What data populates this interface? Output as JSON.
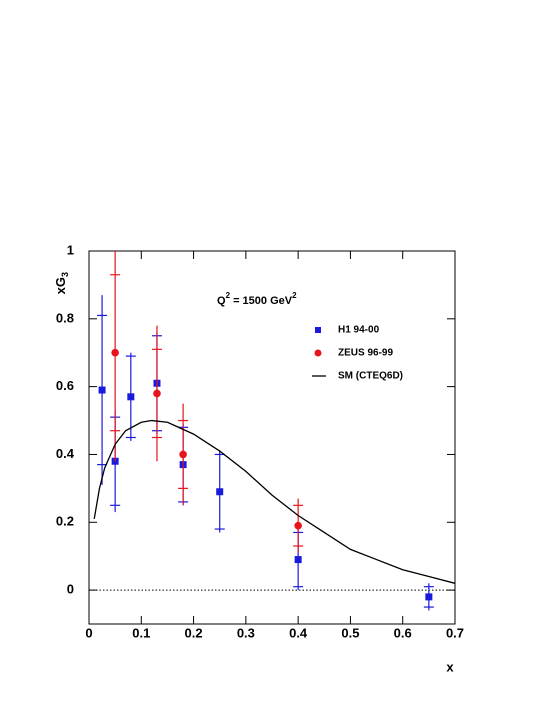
{
  "chart_data": {
    "type": "scatter",
    "xlabel": "x",
    "ylabel": [
      "xG",
      "3"
    ],
    "annotation": [
      "Q",
      "2",
      " = 1500 GeV",
      "2"
    ],
    "xlim": [
      0,
      0.7
    ],
    "ylim": [
      -0.1,
      1
    ],
    "xticks": [
      0,
      0.1,
      0.2,
      0.3,
      0.4,
      0.5,
      0.6,
      0.7
    ],
    "yticks": [
      0,
      0.2,
      0.4,
      0.6,
      0.8,
      1
    ],
    "hline": 0,
    "legend": "upper right",
    "series": [
      {
        "name": "H1 94-00",
        "color": "#1a1adf",
        "marker": "square",
        "x": [
          0.025,
          0.05,
          0.08,
          0.13,
          0.18,
          0.25,
          0.4,
          0.65
        ],
        "values": [
          0.59,
          0.38,
          0.57,
          0.61,
          0.37,
          0.29,
          0.09,
          -0.02
        ],
        "stat_errors": [
          0.22,
          0.13,
          0.12,
          0.14,
          0.11,
          0.11,
          0.08,
          0.03
        ],
        "total_errors": [
          0.28,
          0.15,
          0.13,
          0.15,
          0.12,
          0.12,
          0.09,
          0.04
        ]
      },
      {
        "name": "ZEUS 96-99",
        "color": "#e8141c",
        "marker": "circle",
        "x": [
          0.05,
          0.13,
          0.18,
          0.4
        ],
        "values": [
          0.7,
          0.58,
          0.4,
          0.19
        ],
        "stat_errors": [
          0.23,
          0.13,
          0.1,
          0.06
        ],
        "total_errors": [
          0.32,
          0.2,
          0.15,
          0.08
        ]
      },
      {
        "name": "SM (CTEQ6D)",
        "color": "#000000",
        "marker": "line",
        "x": [
          0.01,
          0.02,
          0.03,
          0.05,
          0.07,
          0.1,
          0.12,
          0.15,
          0.2,
          0.25,
          0.3,
          0.35,
          0.4,
          0.45,
          0.5,
          0.55,
          0.6,
          0.65,
          0.7
        ],
        "values": [
          0.21,
          0.3,
          0.36,
          0.43,
          0.47,
          0.495,
          0.5,
          0.495,
          0.46,
          0.41,
          0.35,
          0.28,
          0.22,
          0.17,
          0.12,
          0.09,
          0.06,
          0.04,
          0.02
        ]
      }
    ]
  }
}
